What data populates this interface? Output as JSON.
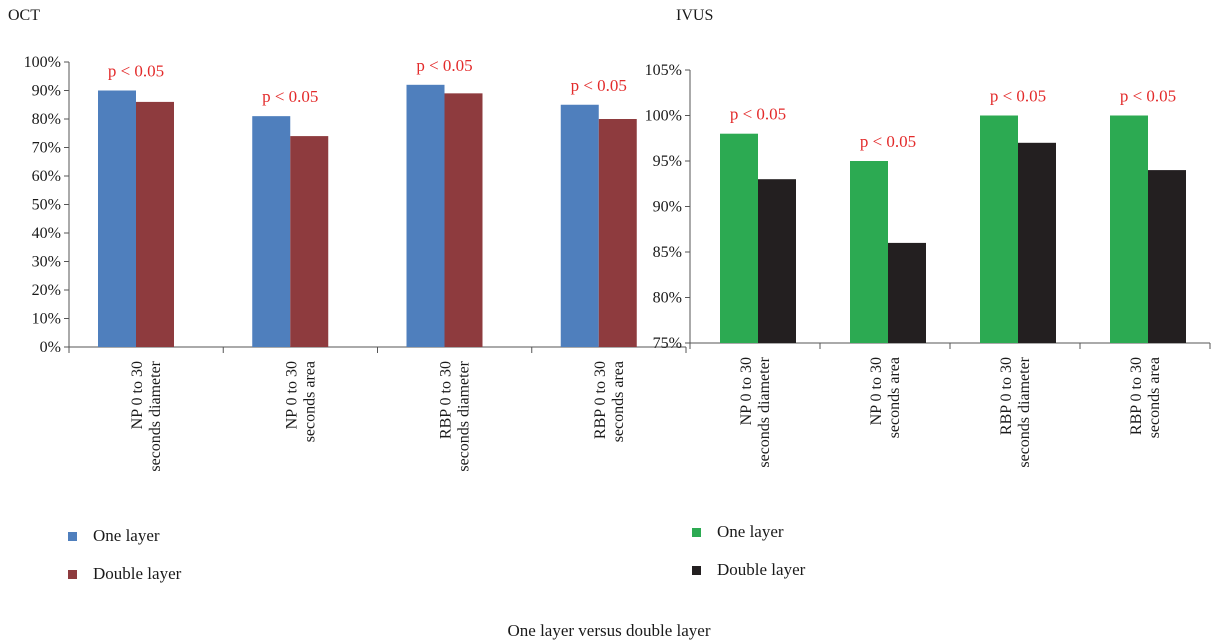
{
  "figure": {
    "caption": "One layer versus double layer"
  },
  "chart_data": [
    {
      "type": "bar",
      "title": "OCT",
      "categories": [
        [
          "NP 0 to 30",
          "seconds diameter"
        ],
        [
          "NP 0 to 30",
          "seconds area"
        ],
        [
          "RBP 0 to 30",
          "seconds diameter"
        ],
        [
          "RBP 0 to 30",
          "seconds area"
        ]
      ],
      "series": [
        {
          "name": "One layer",
          "color": "#4f7fbd",
          "values": [
            90,
            81,
            92,
            85
          ]
        },
        {
          "name": "Double layer",
          "color": "#8e3b3e",
          "values": [
            86,
            74,
            89,
            80
          ]
        }
      ],
      "annotations": [
        "p < 0.05",
        "p < 0.05",
        "p < 0.05",
        "p < 0.05"
      ],
      "annotation_color": "#e32b2b",
      "ylim": [
        0,
        100
      ],
      "yticks": [
        0,
        10,
        20,
        30,
        40,
        50,
        60,
        70,
        80,
        90,
        100
      ],
      "ytick_labels": [
        "0%",
        "10%",
        "20%",
        "30%",
        "40%",
        "50%",
        "60%",
        "70%",
        "80%",
        "90%",
        "100%"
      ],
      "xlabel": "",
      "ylabel": "",
      "grid": false,
      "legend": "bottom-left"
    },
    {
      "type": "bar",
      "title": "IVUS",
      "categories": [
        [
          "NP 0 to 30",
          "seconds diameter"
        ],
        [
          "NP 0 to 30",
          "seconds area"
        ],
        [
          "RBP 0 to 30",
          "seconds diameter"
        ],
        [
          "RBP 0 to 30",
          "seconds area"
        ]
      ],
      "series": [
        {
          "name": "One layer",
          "color": "#2caa52",
          "values": [
            98,
            95,
            100,
            100
          ]
        },
        {
          "name": "Double layer",
          "color": "#231f20",
          "values": [
            93,
            86,
            97,
            94
          ]
        }
      ],
      "annotations": [
        "p < 0.05",
        "p < 0.05",
        "p < 0.05",
        "p < 0.05"
      ],
      "annotation_color": "#e32b2b",
      "ylim": [
        75,
        105
      ],
      "yticks": [
        75,
        80,
        85,
        90,
        95,
        100,
        105
      ],
      "ytick_labels": [
        "75%",
        "80%",
        "85%",
        "90%",
        "95%",
        "100%",
        "105%"
      ],
      "xlabel": "",
      "ylabel": "",
      "grid": false,
      "legend": "bottom-left"
    }
  ]
}
